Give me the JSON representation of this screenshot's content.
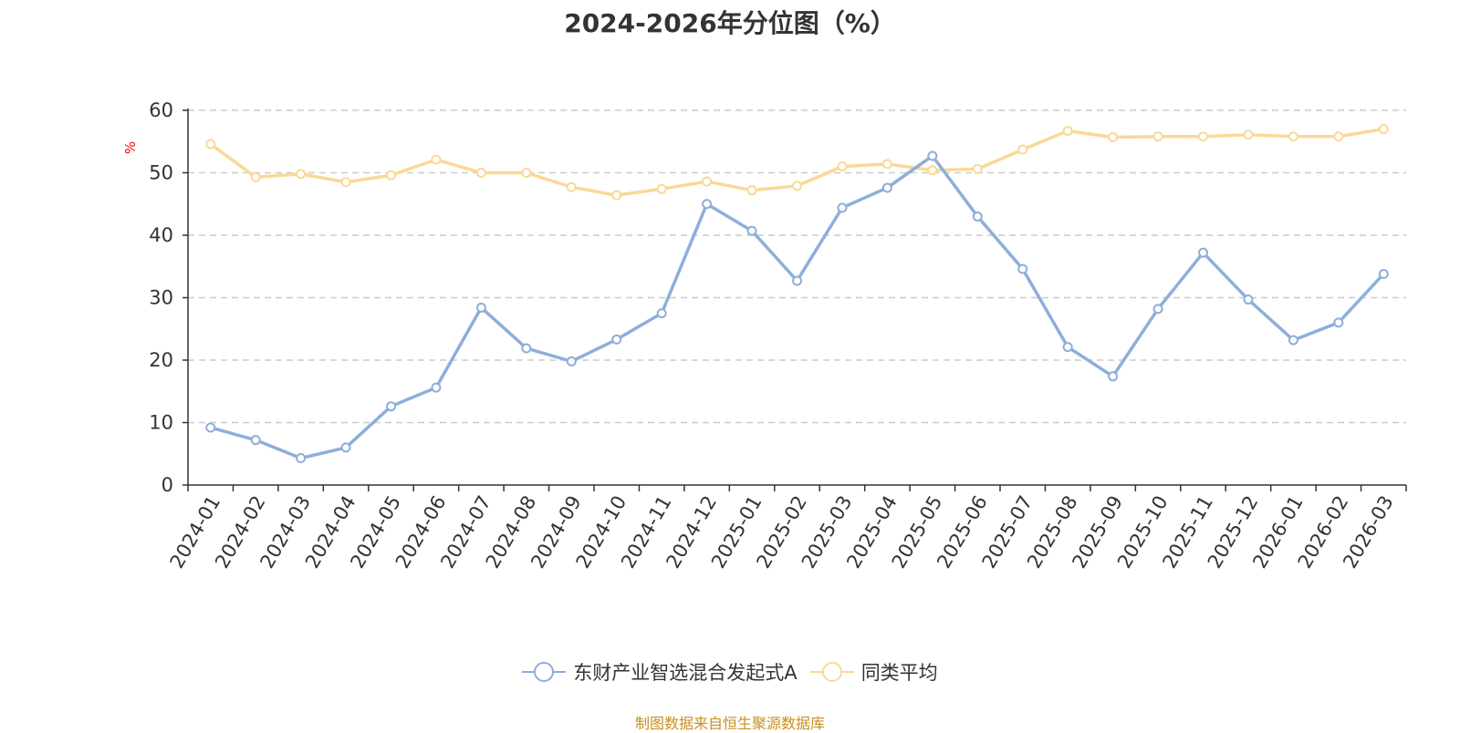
{
  "chart_data": {
    "type": "line",
    "title": "2024-2026年分位图（%）",
    "ylabel": "%",
    "xlabel": "",
    "ylim": [
      0,
      60
    ],
    "yticks": [
      0,
      10,
      20,
      30,
      40,
      50,
      60
    ],
    "grid": true,
    "legend_position": "bottom-center",
    "categories": [
      "2024-01",
      "2024-02",
      "2024-03",
      "2024-04",
      "2024-05",
      "2024-06",
      "2024-07",
      "2024-08",
      "2024-09",
      "2024-10",
      "2024-11",
      "2024-12",
      "2025-01",
      "2025-02",
      "2025-03",
      "2025-04",
      "2025-05",
      "2025-06",
      "2025-07",
      "2025-08",
      "2025-09",
      "2025-10",
      "2025-11",
      "2025-12",
      "2026-01",
      "2026-02",
      "2026-03"
    ],
    "series": [
      {
        "name": "东财产业智选混合发起式A",
        "color": "#8eaedb",
        "values": [
          9.2,
          7.2,
          4.3,
          6.0,
          12.6,
          15.6,
          28.4,
          21.9,
          19.8,
          23.3,
          27.5,
          45.0,
          40.7,
          32.7,
          44.4,
          47.6,
          52.7,
          43.0,
          34.6,
          22.1,
          17.4,
          28.2,
          37.2,
          29.7,
          23.2,
          26.0,
          33.8
        ]
      },
      {
        "name": "同类平均",
        "color": "#fbd896",
        "values": [
          54.6,
          49.3,
          49.8,
          48.5,
          49.6,
          52.1,
          50.0,
          50.0,
          47.7,
          46.4,
          47.4,
          48.6,
          47.2,
          47.9,
          51.0,
          51.4,
          50.4,
          50.6,
          53.7,
          56.7,
          55.7,
          55.8,
          55.8,
          56.1,
          55.8,
          55.8,
          57.0
        ]
      }
    ]
  },
  "source_note": "制图数据来自恒生聚源数据库"
}
